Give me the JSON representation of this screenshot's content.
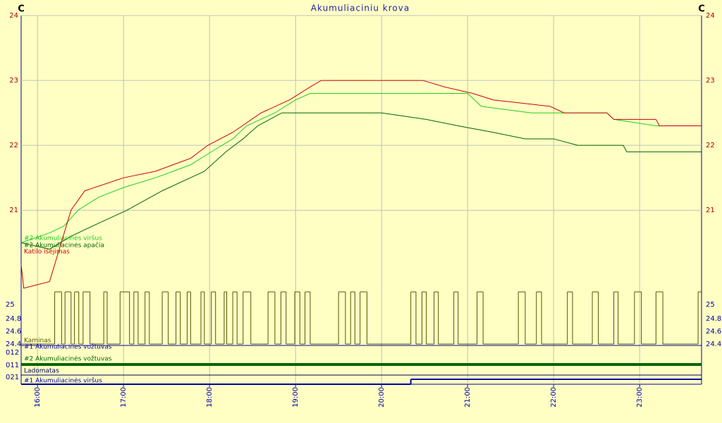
{
  "chart_data": {
    "type": "line",
    "title": "Akumuliaciniu krova",
    "y_unit": "C",
    "xlim": [
      15.81,
      23.72
    ],
    "xticks": [
      {
        "value": 16,
        "label": "16:00"
      },
      {
        "value": 17,
        "label": "17:00"
      },
      {
        "value": 18,
        "label": "18:00"
      },
      {
        "value": 19,
        "label": "19:00"
      },
      {
        "value": 20,
        "label": "20:00"
      },
      {
        "value": 21,
        "label": "21:00"
      },
      {
        "value": 22,
        "label": "22:00"
      },
      {
        "value": 23,
        "label": "23:00"
      }
    ],
    "ylim": [
      18.32,
      24
    ],
    "yticks": [
      21,
      22,
      23,
      24
    ],
    "grid": true,
    "series": [
      {
        "name": "#2 Akumuliacinės viršus",
        "color": "#22cc22",
        "x": [
          15.81,
          16.14,
          16.31,
          16.47,
          16.71,
          17.0,
          17.37,
          17.78,
          18.02,
          18.27,
          18.43,
          18.76,
          19.0,
          19.17,
          20.0,
          21.0,
          21.16,
          21.74,
          22.0,
          22.62,
          22.7,
          23.19,
          23.72
        ],
        "values": [
          20.5,
          20.65,
          20.76,
          21.0,
          21.2,
          21.35,
          21.5,
          21.7,
          21.9,
          22.1,
          22.3,
          22.5,
          22.7,
          22.8,
          22.8,
          22.8,
          22.6,
          22.5,
          22.5,
          22.5,
          22.4,
          22.3,
          22.3
        ]
      },
      {
        "name": "#2 Akumuliacinės apačia",
        "color": "#006600",
        "x": [
          15.81,
          16.14,
          16.39,
          16.71,
          17.04,
          17.45,
          17.94,
          18.19,
          18.39,
          18.56,
          18.84,
          20.0,
          20.52,
          20.89,
          21.3,
          21.67,
          22.0,
          22.28,
          22.81,
          22.85,
          23.72
        ],
        "values": [
          20.5,
          20.4,
          20.6,
          20.8,
          21.0,
          21.3,
          21.6,
          21.9,
          22.1,
          22.3,
          22.5,
          22.5,
          22.4,
          22.3,
          22.2,
          22.1,
          22.1,
          22.0,
          22.0,
          21.9,
          21.9
        ]
      },
      {
        "name": "Katilo išėjimas",
        "color": "#cc0000",
        "x": [
          15.81,
          15.84,
          16.14,
          16.39,
          16.55,
          17.0,
          17.37,
          17.78,
          17.98,
          18.27,
          18.6,
          18.93,
          19.17,
          19.3,
          20.0,
          20.48,
          20.73,
          21.06,
          21.3,
          21.96,
          22.12,
          22.62,
          22.7,
          23.19,
          23.23,
          23.72
        ],
        "values": [
          20.16,
          19.8,
          19.9,
          21.0,
          21.3,
          21.5,
          21.6,
          21.8,
          22.0,
          22.2,
          22.5,
          22.7,
          22.9,
          23.0,
          23.0,
          23.0,
          22.9,
          22.8,
          22.7,
          22.6,
          22.5,
          22.5,
          22.4,
          22.4,
          22.3,
          22.3
        ]
      }
    ],
    "lower_ticks_left": [
      "25",
      "24.8",
      "24.6",
      "24.4",
      "012",
      "011",
      "021"
    ],
    "lower_ticks_right": [
      "25",
      "24.8",
      "24.6",
      "24.4"
    ],
    "digital": [
      {
        "name": "Kaminas",
        "color": "#555500",
        "x": [
          15.81,
          16.2,
          16.28,
          16.32,
          16.39,
          16.43,
          16.48,
          16.53,
          16.61,
          16.77,
          16.81,
          16.96,
          17.07,
          17.12,
          17.17,
          17.25,
          17.3,
          17.45,
          17.52,
          17.61,
          17.66,
          17.74,
          17.78,
          17.9,
          17.94,
          18.02,
          18.07,
          18.17,
          18.2,
          18.27,
          18.32,
          18.39,
          18.48,
          18.68,
          18.76,
          18.83,
          18.89,
          18.99,
          19.05,
          19.11,
          19.17,
          19.5,
          19.58,
          19.64,
          19.69,
          19.75,
          19.83,
          20.34,
          20.4,
          20.47,
          20.52,
          20.61,
          20.66,
          20.84,
          20.89,
          21.11,
          21.18,
          21.59,
          21.67,
          21.8,
          21.86,
          22.16,
          22.22,
          22.45,
          22.52,
          22.7,
          22.75,
          22.94,
          23.02,
          23.19,
          23.27,
          23.68,
          23.72
        ],
        "values": [
          0,
          1,
          0,
          1,
          0,
          1,
          0,
          1,
          0,
          1,
          0,
          1,
          0,
          1,
          0,
          1,
          0,
          1,
          0,
          1,
          0,
          1,
          0,
          1,
          0,
          1,
          0,
          1,
          0,
          1,
          0,
          1,
          0,
          1,
          0,
          1,
          0,
          1,
          0,
          1,
          0,
          1,
          0,
          1,
          0,
          1,
          0,
          1,
          0,
          1,
          0,
          1,
          0,
          1,
          0,
          1,
          0,
          1,
          0,
          1,
          0,
          1,
          0,
          1,
          0,
          1,
          0,
          1,
          0,
          1,
          0,
          1,
          1
        ]
      },
      {
        "name": "#1 Akumuliacinės vožtuvas",
        "color": "#0000aa",
        "x": [
          15.81,
          23.72
        ],
        "values": [
          0,
          0
        ]
      },
      {
        "name": "#2 Akumuliacinės vožtuvas",
        "color": "#006600",
        "x": [
          15.81,
          23.72
        ],
        "values": [
          1,
          1
        ]
      },
      {
        "name": "Ladomatas",
        "color": "#000066",
        "x": [
          15.81,
          23.72
        ],
        "values": [
          0,
          0
        ]
      },
      {
        "name": "#1 Akumuliacinės viršus",
        "color": "#0000aa",
        "x": [
          15.81,
          20.34,
          23.72
        ],
        "values": [
          0,
          1,
          1
        ]
      }
    ]
  }
}
